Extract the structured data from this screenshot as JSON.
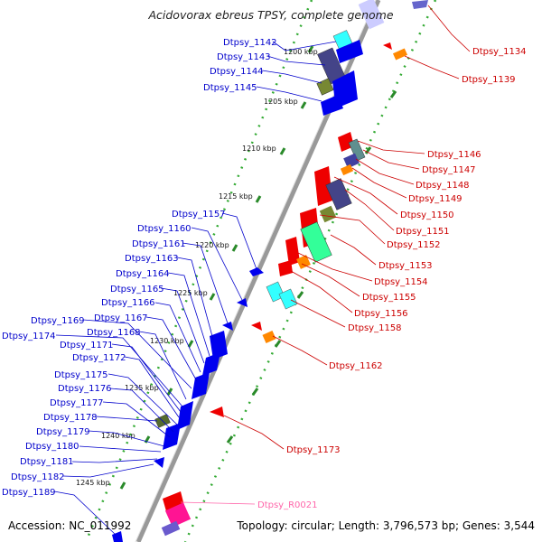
{
  "title": "Acidovorax ebreus TPSY, complete genome",
  "accession": "Accession: NC_011992",
  "topology": "Topology: circular; Length: 3,796,573 bp; Genes: 3,544",
  "colors": {
    "left_label": "#0000cc",
    "right_label": "#cc0000",
    "rna_label": "#ff66aa",
    "backbone": "#888888",
    "tick_dots": "#33aa33"
  },
  "kbp_ticks": [
    {
      "text": "1200 kbp"
    },
    {
      "text": "1205 kbp"
    },
    {
      "text": "1210 kbp"
    },
    {
      "text": "1215 kbp"
    },
    {
      "text": "1220 kbp"
    },
    {
      "text": "1225 kbp"
    },
    {
      "text": "1230 kbp"
    },
    {
      "text": "1235 kbp"
    },
    {
      "text": "1240 kbp"
    },
    {
      "text": "1245 kbp"
    }
  ],
  "left_genes": [
    "Dtpsy_1142",
    "Dtpsy_1143",
    "Dtpsy_1144",
    "Dtpsy_1145",
    "Dtpsy_1157",
    "Dtpsy_1160",
    "Dtpsy_1161",
    "Dtpsy_1163",
    "Dtpsy_1164",
    "Dtpsy_1165",
    "Dtpsy_1166",
    "Dtpsy_1167",
    "Dtpsy_1169",
    "Dtpsy_1168",
    "Dtpsy_1174",
    "Dtpsy_1171",
    "Dtpsy_1172",
    "Dtpsy_1175",
    "Dtpsy_1176",
    "Dtpsy_1177",
    "Dtpsy_1178",
    "Dtpsy_1179",
    "Dtpsy_1180",
    "Dtpsy_1181",
    "Dtpsy_1182",
    "Dtpsy_1189"
  ],
  "right_genes": [
    "Dtpsy_1134",
    "Dtpsy_1139",
    "Dtpsy_1146",
    "Dtpsy_1147",
    "Dtpsy_1148",
    "Dtpsy_1149",
    "Dtpsy_1150",
    "Dtpsy_1151",
    "Dtpsy_1152",
    "Dtpsy_1153",
    "Dtpsy_1154",
    "Dtpsy_1155",
    "Dtpsy_1156",
    "Dtpsy_1158",
    "Dtpsy_1162",
    "Dtpsy_1173"
  ],
  "rna_genes": [
    "Dtpsy_R0021"
  ]
}
